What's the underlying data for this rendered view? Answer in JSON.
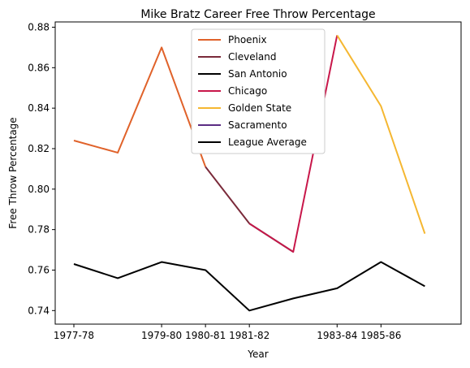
{
  "chart_data": {
    "type": "line",
    "title": "Mike Bratz Career Free Throw Percentage",
    "xlabel": "Year",
    "ylabel": "Free Throw Percentage",
    "x_tick_labels": [
      "1977-78",
      "1979-80",
      "1980-81",
      "1981-82",
      "1983-84",
      "1985-86"
    ],
    "x_tick_positions": [
      0,
      2,
      3,
      4,
      6,
      7
    ],
    "x_domain": [
      0,
      8.4
    ],
    "ylim": [
      0.7333,
      0.8826
    ],
    "y_ticks": [
      0.74,
      0.76,
      0.78,
      0.8,
      0.82,
      0.84,
      0.86,
      0.88
    ],
    "y_tick_labels": [
      "0.74",
      "0.76",
      "0.78",
      "0.80",
      "0.82",
      "0.84",
      "0.86",
      "0.88"
    ],
    "grid": false,
    "legend_position": "upper center",
    "series": [
      {
        "name": "Phoenix",
        "color": "#e0622a",
        "x": [
          0,
          1,
          2,
          3
        ],
        "y": [
          0.824,
          0.818,
          0.87,
          0.811
        ]
      },
      {
        "name": "Cleveland",
        "color": "#7a2a3a",
        "x": [
          3,
          4
        ],
        "y": [
          0.811,
          0.783
        ]
      },
      {
        "name": "San Antonio",
        "color": "#000000",
        "x": [
          4,
          5
        ],
        "y": [
          0.783,
          0.769
        ]
      },
      {
        "name": "Chicago",
        "color": "#c8174a",
        "x": [
          4,
          5,
          6
        ],
        "y": [
          0.783,
          0.769,
          0.876
        ]
      },
      {
        "name": "Golden State",
        "color": "#f5b731",
        "x": [
          6,
          7,
          8
        ],
        "y": [
          0.876,
          0.841,
          0.778
        ]
      },
      {
        "name": "Sacramento",
        "color": "#5b2c83",
        "x": [],
        "y": []
      },
      {
        "name": "League Average",
        "color": "#000000",
        "x": [
          0,
          1,
          2,
          3,
          4,
          5,
          6,
          7,
          8
        ],
        "y": [
          0.763,
          0.756,
          0.764,
          0.76,
          0.74,
          0.746,
          0.751,
          0.764,
          0.752
        ]
      }
    ]
  }
}
